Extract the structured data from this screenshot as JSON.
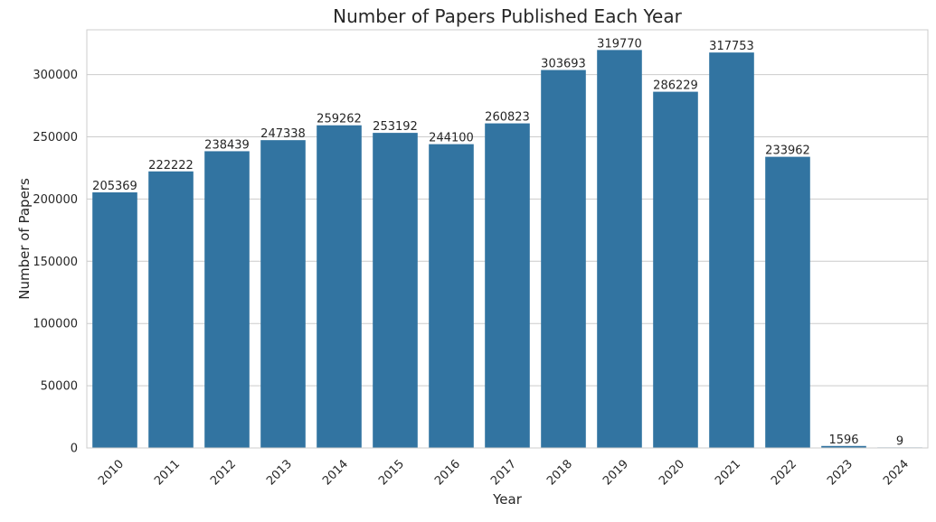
{
  "chart_data": {
    "type": "bar",
    "title": "Number of Papers Published Each Year",
    "xlabel": "Year",
    "ylabel": "Number of Papers",
    "categories": [
      "2010",
      "2011",
      "2012",
      "2013",
      "2014",
      "2015",
      "2016",
      "2017",
      "2018",
      "2019",
      "2020",
      "2021",
      "2022",
      "2023",
      "2024"
    ],
    "values": [
      205369,
      222222,
      238439,
      247338,
      259262,
      253192,
      244100,
      260823,
      303693,
      319770,
      286229,
      317753,
      233962,
      1596,
      9
    ],
    "ylim": [
      0,
      336000
    ],
    "yticks": [
      0,
      50000,
      100000,
      150000,
      200000,
      250000,
      300000
    ],
    "grid": true,
    "bar_color": "#3274a1",
    "grid_color": "#cccccc",
    "x_tick_rotation": -45
  }
}
